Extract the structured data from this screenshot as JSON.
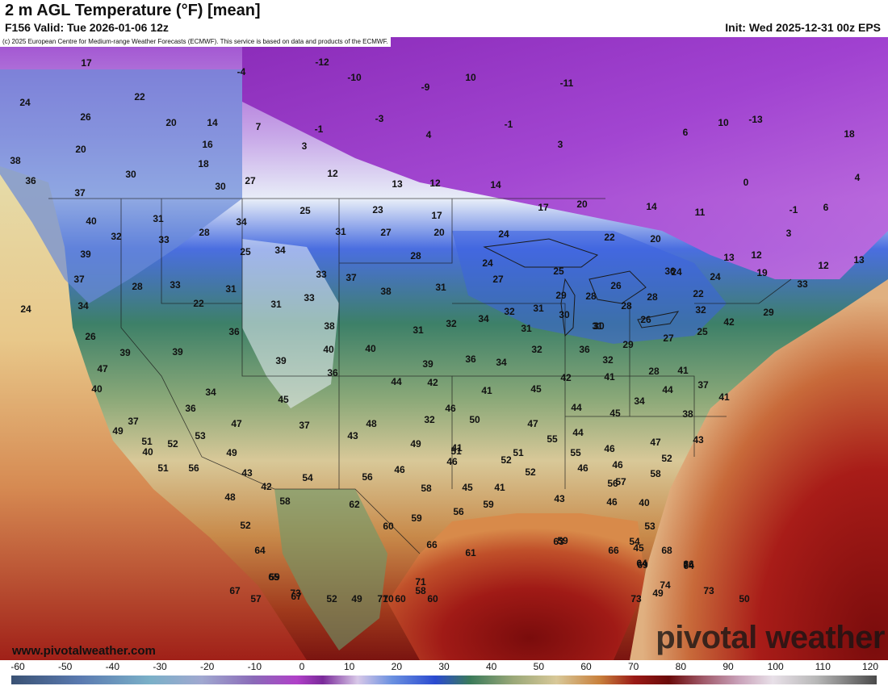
{
  "header": {
    "title": "2 m AGL Temperature (°F) [mean]",
    "valid": "F156 Valid: Tue 2026-01-06 12z",
    "init": "Init: Wed 2025-12-31 00z EPS"
  },
  "map": {
    "copyright": "(c) 2025 European Centre for Medium-range Weather Forecasts (ECMWF). This service is based on data and products of the ECMWF.",
    "website": "www.pivotalweather.com",
    "brand": "pivotal weather",
    "labels": [
      "17",
      "-12",
      "-4",
      "-10",
      "-9",
      "10",
      "-11",
      "24",
      "22",
      "26",
      "20",
      "14",
      "7",
      "-1",
      "-3",
      "4",
      "-1",
      "10",
      "-13",
      "18",
      "20",
      "16",
      "3",
      "3",
      "6",
      "38",
      "18",
      "30",
      "12",
      "13",
      "12",
      "14",
      "0",
      "36",
      "27",
      "30",
      "4",
      "37",
      "-1",
      "6",
      "40",
      "31",
      "34",
      "25",
      "23",
      "17",
      "20",
      "14",
      "11",
      "3",
      "32",
      "28",
      "31",
      "27",
      "20",
      "24",
      "22",
      "20",
      "13",
      "12",
      "13",
      "39",
      "33",
      "25",
      "34",
      "28",
      "24",
      "17",
      "12",
      "37",
      "28",
      "33",
      "31",
      "33",
      "37",
      "38",
      "31",
      "27",
      "25",
      "29",
      "28",
      "26",
      "24",
      "24",
      "19",
      "33",
      "34",
      "22",
      "31",
      "33",
      "34",
      "32",
      "31",
      "30",
      "31",
      "28",
      "28",
      "22",
      "32",
      "24",
      "26",
      "36",
      "36",
      "38",
      "31",
      "32",
      "31",
      "30",
      "29",
      "25",
      "27",
      "42",
      "29",
      "26",
      "39",
      "39",
      "40",
      "40",
      "36",
      "34",
      "32",
      "36",
      "32",
      "28",
      "39",
      "47",
      "36",
      "39",
      "44",
      "42",
      "41",
      "45",
      "42",
      "41",
      "41",
      "40",
      "34",
      "45",
      "44",
      "34",
      "44",
      "37",
      "41",
      "37",
      "36",
      "47",
      "45",
      "32",
      "46",
      "50",
      "47",
      "44",
      "38",
      "49",
      "53",
      "51",
      "37",
      "43",
      "48",
      "49",
      "51",
      "52",
      "55",
      "46",
      "47",
      "43",
      "40",
      "41",
      "51",
      "55",
      "52",
      "49",
      "52",
      "46",
      "57",
      "52",
      "51",
      "56",
      "46",
      "46",
      "43",
      "42",
      "54",
      "56",
      "46",
      "58",
      "56",
      "58",
      "45",
      "41",
      "48",
      "52",
      "59",
      "56",
      "59",
      "43",
      "46",
      "40",
      "53",
      "58",
      "62",
      "60",
      "64",
      "61",
      "65",
      "63",
      "66",
      "67",
      "59",
      "73",
      "71",
      "54",
      "64",
      "60",
      "58",
      "60",
      "57",
      "59",
      "66",
      "66",
      "67",
      "74",
      "68",
      "64",
      "69",
      "45",
      "49",
      "52",
      "49",
      "70",
      "71",
      "74",
      "73",
      "50",
      "73"
    ],
    "label_colors_note": "black"
  },
  "colorbar": {
    "ticks": [
      "-60",
      "-50",
      "-40",
      "-30",
      "-20",
      "-10",
      "0",
      "10",
      "20",
      "30",
      "40",
      "50",
      "60",
      "70",
      "80",
      "90",
      "100",
      "110",
      "120"
    ],
    "unit": "°F",
    "colors": {
      "low_extreme": "#46618f",
      "cold": "#6a88c6",
      "purple": "#9a3cc4",
      "white": "#e8eef6",
      "blue": "#2e5bd6",
      "green": "#3f7a5a",
      "tan": "#d8c8a0",
      "orange": "#c8702a",
      "red": "#a01818",
      "dark_red": "#6a0a0a"
    }
  }
}
